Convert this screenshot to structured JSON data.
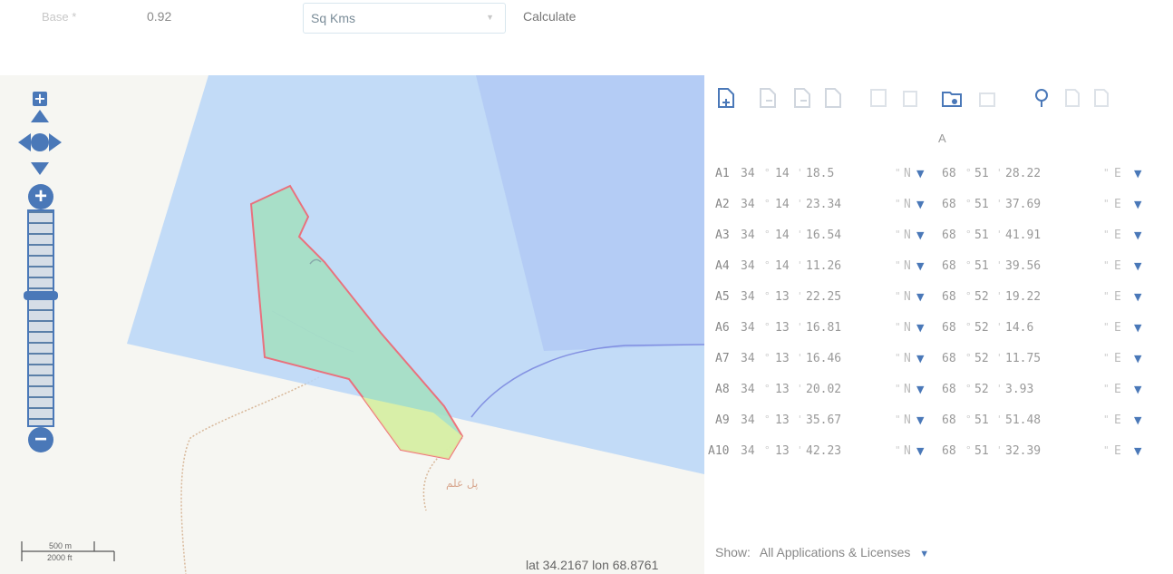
{
  "form": {
    "base_label": "Base *",
    "base_value": "0.92",
    "unit_select": "Sq Kms",
    "calculate_label": "Calculate"
  },
  "map": {
    "place_label": "پل علم",
    "scale_m": "500 m",
    "scale_ft": "2000 ft",
    "coords_text": "lat 34.2167 lon 68.8761",
    "colors": {
      "zone_fill": "#b8d6f8",
      "zone_dark": "#b0c8f4",
      "polygon_fill": "#a6e0c4",
      "polygon_stroke": "#ee6670",
      "road": "#d8b89a",
      "river": "#6a74d8",
      "control": "#4a78b8"
    }
  },
  "toolbar": {
    "icons": [
      "new-file-icon",
      "file-import-icon",
      "file-export-icon",
      "file-icon",
      "save-icon",
      "delete-icon",
      "folder-open-icon",
      "folder-icon",
      "map-pin-icon",
      "file-copy-icon",
      "file-paste-icon"
    ]
  },
  "table": {
    "column_header": "A",
    "rows": [
      {
        "name": "A1",
        "lat_deg": "34",
        "lat_min": "14",
        "lat_sec": "18.5",
        "lat_dir": "N",
        "lon_deg": "68",
        "lon_min": "51",
        "lon_sec": "28.22",
        "lon_dir": "E"
      },
      {
        "name": "A2",
        "lat_deg": "34",
        "lat_min": "14",
        "lat_sec": "23.34",
        "lat_dir": "N",
        "lon_deg": "68",
        "lon_min": "51",
        "lon_sec": "37.69",
        "lon_dir": "E"
      },
      {
        "name": "A3",
        "lat_deg": "34",
        "lat_min": "14",
        "lat_sec": "16.54",
        "lat_dir": "N",
        "lon_deg": "68",
        "lon_min": "51",
        "lon_sec": "41.91",
        "lon_dir": "E"
      },
      {
        "name": "A4",
        "lat_deg": "34",
        "lat_min": "14",
        "lat_sec": "11.26",
        "lat_dir": "N",
        "lon_deg": "68",
        "lon_min": "51",
        "lon_sec": "39.56",
        "lon_dir": "E"
      },
      {
        "name": "A5",
        "lat_deg": "34",
        "lat_min": "13",
        "lat_sec": "22.25",
        "lat_dir": "N",
        "lon_deg": "68",
        "lon_min": "52",
        "lon_sec": "19.22",
        "lon_dir": "E"
      },
      {
        "name": "A6",
        "lat_deg": "34",
        "lat_min": "13",
        "lat_sec": "16.81",
        "lat_dir": "N",
        "lon_deg": "68",
        "lon_min": "52",
        "lon_sec": "14.6",
        "lon_dir": "E"
      },
      {
        "name": "A7",
        "lat_deg": "34",
        "lat_min": "13",
        "lat_sec": "16.46",
        "lat_dir": "N",
        "lon_deg": "68",
        "lon_min": "52",
        "lon_sec": "11.75",
        "lon_dir": "E"
      },
      {
        "name": "A8",
        "lat_deg": "34",
        "lat_min": "13",
        "lat_sec": "20.02",
        "lat_dir": "N",
        "lon_deg": "68",
        "lon_min": "52",
        "lon_sec": "3.93",
        "lon_dir": "E"
      },
      {
        "name": "A9",
        "lat_deg": "34",
        "lat_min": "13",
        "lat_sec": "35.67",
        "lat_dir": "N",
        "lon_deg": "68",
        "lon_min": "51",
        "lon_sec": "51.48",
        "lon_dir": "E"
      },
      {
        "name": "A10",
        "lat_deg": "34",
        "lat_min": "13",
        "lat_sec": "42.23",
        "lat_dir": "N",
        "lon_deg": "68",
        "lon_min": "51",
        "lon_sec": "32.39",
        "lon_dir": "E"
      }
    ]
  },
  "filter": {
    "show_label": "Show:",
    "show_value": "All Applications & Licenses"
  }
}
